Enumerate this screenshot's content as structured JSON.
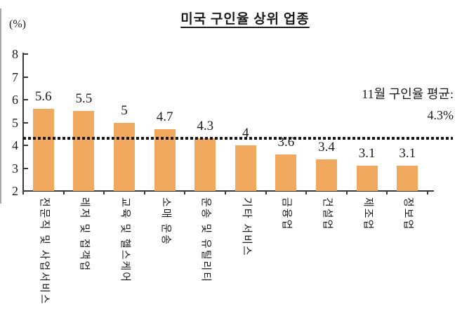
{
  "page": {
    "background": "#ffffff"
  },
  "chart_data": {
    "type": "bar",
    "title": "미국 구인율 상위 업종",
    "unit_label": "(%)",
    "categories": [
      "전문직 및 사업서비스",
      "레저 및 접객업",
      "교육 및 헬스케어",
      "소매 운송",
      "운송 및 유틸리티",
      "기타 서비스",
      "금융업",
      "건설업",
      "제조업",
      "정보업"
    ],
    "values": [
      5.6,
      5.5,
      5,
      4.7,
      4.3,
      4,
      3.6,
      3.4,
      3.1,
      3.1
    ],
    "value_labels": [
      "5.6",
      "5.5",
      "5",
      "4.7",
      "4.3",
      "4",
      "3.6",
      "3.4",
      "3.1",
      "3.1"
    ],
    "ylim": [
      2,
      8
    ],
    "yticks": [
      8,
      7,
      6,
      5,
      4,
      3,
      2
    ],
    "grid": false,
    "legend": false,
    "bar_color": "#F0A95F",
    "axis_color": "#3a3a3a",
    "text_color": "#1b1b1b",
    "average_line": {
      "value": 4.3,
      "style": "dotted",
      "color": "#151515",
      "label_line1": "11월 구인율 평균:",
      "label_line2": "4.3%"
    }
  }
}
